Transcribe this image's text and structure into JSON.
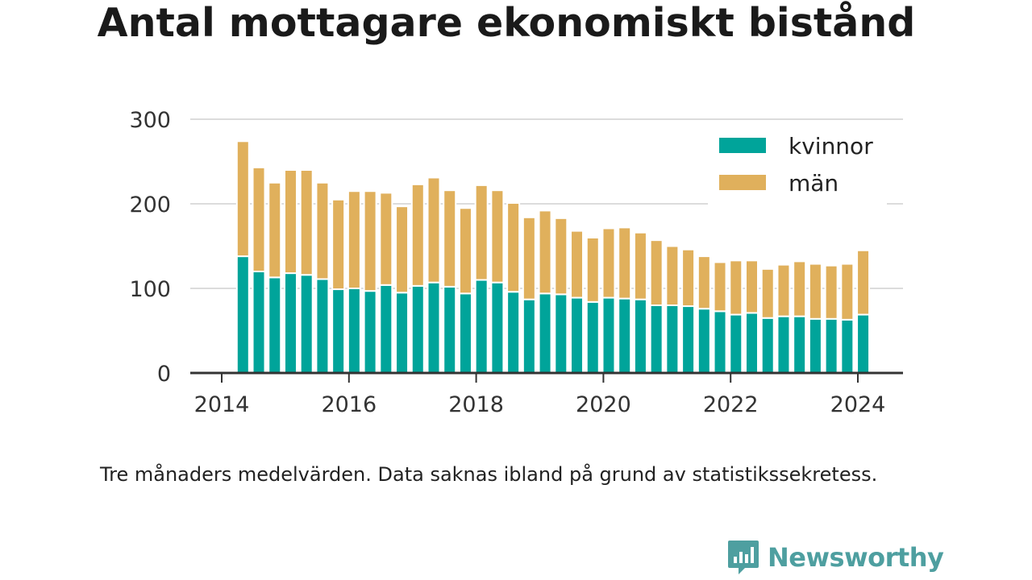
{
  "title": "Antal mottagare ekonomiskt bistånd",
  "footnote": "Tre månaders medelvärden. Data saknas ibland på grund av statistikssekretess.",
  "logo": {
    "text": "Newsworthy",
    "icon": "newsworthy-chat-bars-icon"
  },
  "colors": {
    "kvinnor": "#00a49a",
    "man": "#e0b05c",
    "grid": "#dcdcdc",
    "axis": "#333333"
  },
  "chart_data": {
    "type": "bar",
    "stacked": true,
    "x_label": "",
    "y_label": "",
    "ylim": [
      0,
      300
    ],
    "yticks": [
      "0",
      "100",
      "200",
      "300"
    ],
    "xticks": [
      "2014",
      "2016",
      "2018",
      "2020",
      "2022",
      "2024"
    ],
    "grid": true,
    "legend_position": "top-right",
    "categories": [
      "2014-05",
      "2014-08",
      "2014-11",
      "2015-02",
      "2015-05",
      "2015-08",
      "2015-11",
      "2016-02",
      "2016-05",
      "2016-08",
      "2016-11",
      "2017-02",
      "2017-05",
      "2017-08",
      "2017-11",
      "2018-02",
      "2018-05",
      "2018-08",
      "2018-11",
      "2019-02",
      "2019-05",
      "2019-08",
      "2019-11",
      "2020-02",
      "2020-05",
      "2020-08",
      "2020-11",
      "2021-02",
      "2021-05",
      "2021-08",
      "2021-11",
      "2022-02",
      "2022-05",
      "2022-08",
      "2022-11",
      "2023-02",
      "2023-05",
      "2023-08",
      "2023-11",
      "2024-02"
    ],
    "series": [
      {
        "name": "kvinnor",
        "values": [
          138,
          120,
          113,
          118,
          116,
          111,
          99,
          100,
          97,
          104,
          95,
          103,
          107,
          102,
          94,
          110,
          107,
          96,
          87,
          94,
          93,
          89,
          84,
          89,
          88,
          87,
          80,
          80,
          79,
          76,
          73,
          69,
          71,
          65,
          67,
          67,
          64,
          64,
          63,
          69
        ]
      },
      {
        "name": "män",
        "values": [
          136,
          123,
          112,
          122,
          124,
          114,
          106,
          115,
          118,
          109,
          102,
          120,
          124,
          114,
          101,
          112,
          109,
          105,
          97,
          98,
          90,
          79,
          76,
          82,
          84,
          79,
          77,
          70,
          67,
          62,
          58,
          64,
          62,
          58,
          61,
          65,
          65,
          63,
          66,
          76
        ]
      }
    ]
  }
}
